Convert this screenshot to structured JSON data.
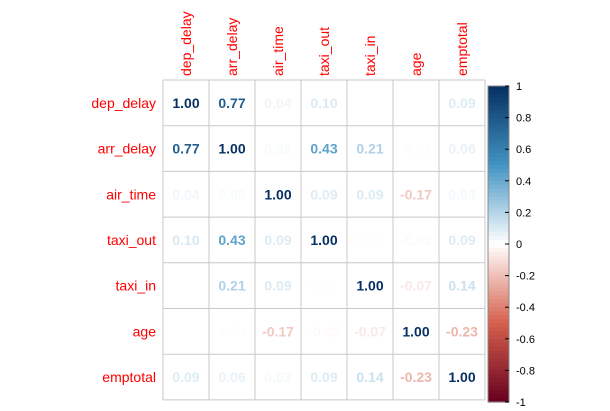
{
  "chart_data": {
    "type": "heatmap",
    "title": "",
    "variables": [
      "dep_delay",
      "arr_delay",
      "air_time",
      "taxi_out",
      "taxi_in",
      "age",
      "emptotal"
    ],
    "matrix": [
      [
        1.0,
        0.77,
        0.04,
        0.1,
        null,
        null,
        0.09
      ],
      [
        0.77,
        1.0,
        0.02,
        0.43,
        0.21,
        -0.01,
        0.06
      ],
      [
        0.04,
        0.02,
        1.0,
        0.09,
        0.09,
        -0.17,
        0.03
      ],
      [
        0.1,
        0.43,
        0.09,
        1.0,
        0.01,
        -0.02,
        0.09
      ],
      [
        null,
        0.21,
        0.09,
        0.01,
        1.0,
        -0.07,
        0.14
      ],
      [
        null,
        -0.01,
        -0.17,
        -0.02,
        -0.07,
        1.0,
        -0.23
      ],
      [
        0.09,
        0.06,
        0.03,
        0.09,
        0.14,
        -0.23,
        1.0
      ]
    ],
    "value_format": "2 decimals",
    "label_color": "#ff0000",
    "colorbar": {
      "range": [
        -1,
        1
      ],
      "ticks": [
        "1",
        "0.8",
        "0.6",
        "0.4",
        "0.2",
        "0",
        "-0.2",
        "-0.4",
        "-0.6",
        "-0.8",
        "-1"
      ],
      "colors": {
        "negative_end": "#67001f",
        "negative_mid": "#d6604d",
        "neutral": "#ffffff",
        "positive_mid": "#4393c3",
        "positive_end": "#053061"
      }
    },
    "grid": true,
    "legend_position": "right"
  }
}
